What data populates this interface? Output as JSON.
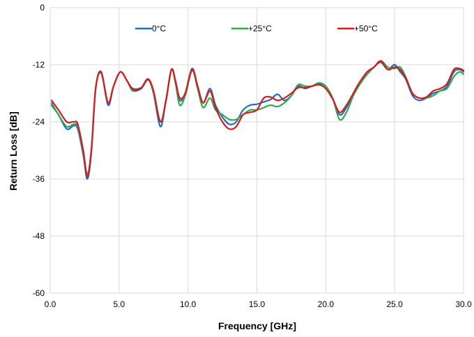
{
  "chart_data": {
    "type": "line",
    "title": "",
    "xlabel": "Frequency [GHz]",
    "ylabel": "Return Loss [dB]",
    "xlim": [
      0,
      30
    ],
    "ylim": [
      -60,
      0
    ],
    "xticks": [
      0,
      5,
      10,
      15,
      20,
      25,
      30
    ],
    "xtick_labels": [
      "0.0",
      "5.0",
      "10.0",
      "15.0",
      "20.0",
      "25.0",
      "30.0"
    ],
    "yticks": [
      0,
      -12,
      -24,
      -36,
      -48,
      -60
    ],
    "ytick_labels": [
      "0",
      "-12",
      "-24",
      "-36",
      "-48",
      "-60"
    ],
    "grid": true,
    "legend_position": "top",
    "series": [
      {
        "name": "0°C",
        "color": "#1f6fbf",
        "x": [
          0.1,
          0.6,
          1.2,
          1.7,
          2.0,
          2.4,
          2.7,
          3.0,
          3.3,
          3.7,
          4.2,
          4.6,
          5.1,
          5.6,
          6.0,
          6.6,
          7.1,
          7.5,
          8.0,
          8.4,
          8.8,
          9.1,
          9.4,
          9.8,
          10.3,
          10.7,
          11.1,
          11.6,
          12.0,
          12.5,
          13.0,
          13.5,
          14.0,
          14.5,
          15.0,
          15.5,
          16.0,
          16.5,
          17.0,
          17.5,
          18.0,
          18.5,
          19.0,
          19.5,
          20.0,
          20.5,
          21.0,
          21.5,
          22.0,
          22.5,
          23.0,
          23.5,
          24.0,
          24.5,
          25.0,
          25.4,
          25.8,
          26.3,
          26.8,
          27.3,
          27.8,
          28.3,
          28.8,
          29.3,
          29.7,
          30.0
        ],
        "y": [
          -20.5,
          -22.5,
          -25.5,
          -24.8,
          -25.5,
          -31.0,
          -36.0,
          -30.0,
          -17.0,
          -13.5,
          -20.5,
          -16.5,
          -13.5,
          -15.5,
          -17.0,
          -16.8,
          -15.0,
          -18.0,
          -25.0,
          -19.5,
          -13.0,
          -15.5,
          -19.5,
          -18.0,
          -12.8,
          -16.5,
          -20.0,
          -17.0,
          -20.5,
          -23.0,
          -24.5,
          -24.0,
          -21.5,
          -20.5,
          -20.3,
          -19.8,
          -19.3,
          -18.2,
          -19.5,
          -18.5,
          -16.5,
          -17.0,
          -16.5,
          -16.0,
          -17.0,
          -19.0,
          -22.5,
          -21.0,
          -18.0,
          -15.5,
          -14.0,
          -12.5,
          -11.5,
          -13.0,
          -12.0,
          -13.5,
          -15.0,
          -18.5,
          -19.5,
          -19.0,
          -18.0,
          -17.5,
          -16.5,
          -13.5,
          -13.0,
          -13.5
        ]
      },
      {
        "name": "+25°C",
        "color": "#2fa84f",
        "x": [
          0.1,
          0.6,
          1.2,
          1.7,
          2.0,
          2.4,
          2.7,
          3.0,
          3.3,
          3.7,
          4.2,
          4.6,
          5.1,
          5.6,
          6.0,
          6.6,
          7.1,
          7.5,
          8.0,
          8.4,
          8.8,
          9.1,
          9.4,
          9.8,
          10.3,
          10.7,
          11.1,
          11.6,
          12.0,
          12.5,
          13.0,
          13.5,
          14.0,
          14.5,
          15.0,
          15.5,
          16.0,
          16.5,
          17.0,
          17.5,
          18.0,
          18.5,
          19.0,
          19.5,
          20.0,
          20.5,
          21.0,
          21.5,
          22.0,
          22.5,
          23.0,
          23.5,
          24.0,
          24.5,
          25.0,
          25.4,
          25.8,
          26.3,
          26.8,
          27.3,
          27.8,
          28.3,
          28.8,
          29.3,
          29.7,
          30.0
        ],
        "y": [
          -20.0,
          -22.5,
          -25.0,
          -24.5,
          -25.0,
          -30.5,
          -35.0,
          -29.5,
          -17.0,
          -13.8,
          -20.0,
          -16.5,
          -13.5,
          -15.5,
          -17.5,
          -17.0,
          -15.2,
          -17.8,
          -24.0,
          -19.8,
          -13.0,
          -16.0,
          -20.5,
          -18.5,
          -13.2,
          -17.0,
          -21.0,
          -19.0,
          -21.5,
          -22.5,
          -23.5,
          -23.5,
          -22.5,
          -21.5,
          -21.5,
          -21.0,
          -20.5,
          -20.8,
          -20.0,
          -18.5,
          -16.2,
          -16.5,
          -16.5,
          -15.8,
          -16.5,
          -19.0,
          -23.5,
          -22.0,
          -18.5,
          -16.0,
          -14.0,
          -12.5,
          -11.2,
          -12.5,
          -12.8,
          -12.5,
          -14.5,
          -18.0,
          -19.0,
          -19.0,
          -18.5,
          -17.5,
          -17.0,
          -14.5,
          -13.5,
          -14.0
        ]
      },
      {
        "name": "+50°C",
        "color": "#d9191f",
        "x": [
          0.1,
          0.6,
          1.2,
          1.7,
          2.0,
          2.4,
          2.7,
          3.0,
          3.3,
          3.7,
          4.2,
          4.6,
          5.1,
          5.6,
          6.0,
          6.6,
          7.1,
          7.5,
          8.0,
          8.4,
          8.8,
          9.1,
          9.4,
          9.8,
          10.3,
          10.7,
          11.1,
          11.6,
          12.0,
          12.5,
          13.0,
          13.5,
          14.0,
          14.5,
          15.0,
          15.5,
          16.0,
          16.5,
          17.0,
          17.5,
          18.0,
          18.5,
          19.0,
          19.5,
          20.0,
          20.5,
          21.0,
          21.5,
          22.0,
          22.5,
          23.0,
          23.5,
          24.0,
          24.5,
          25.0,
          25.4,
          25.8,
          26.3,
          26.8,
          27.3,
          27.8,
          28.3,
          28.8,
          29.3,
          29.7,
          30.0
        ],
        "y": [
          -19.5,
          -21.5,
          -24.0,
          -24.0,
          -24.5,
          -30.0,
          -35.5,
          -29.5,
          -17.0,
          -13.5,
          -20.0,
          -16.5,
          -13.5,
          -15.5,
          -17.2,
          -17.0,
          -15.0,
          -17.5,
          -24.0,
          -19.5,
          -13.0,
          -15.5,
          -19.0,
          -18.0,
          -13.0,
          -16.5,
          -20.0,
          -17.5,
          -21.0,
          -24.0,
          -25.5,
          -25.0,
          -22.5,
          -22.0,
          -21.5,
          -19.0,
          -18.8,
          -19.5,
          -19.0,
          -18.0,
          -16.8,
          -16.8,
          -16.5,
          -16.2,
          -17.0,
          -19.2,
          -22.0,
          -20.5,
          -18.0,
          -15.5,
          -13.5,
          -12.5,
          -11.2,
          -13.0,
          -12.5,
          -13.0,
          -14.8,
          -18.0,
          -19.0,
          -18.8,
          -17.5,
          -17.0,
          -16.0,
          -13.0,
          -12.8,
          -13.2
        ]
      }
    ]
  }
}
